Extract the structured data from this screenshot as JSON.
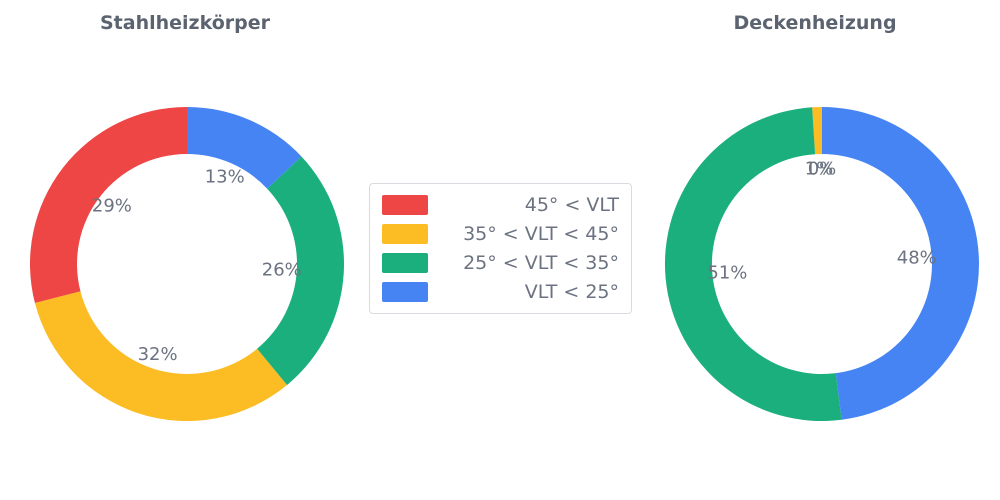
{
  "page": {
    "background": "#ffffff"
  },
  "colors": {
    "red": "#ee4545",
    "yellow": "#fbbc24",
    "green": "#1aaf7c",
    "blue": "#4584f2",
    "label_text": "#6b7280",
    "title_text": "#5c6370",
    "legend_border": "#d8dce1",
    "legend_background": "#ffffff"
  },
  "legend": {
    "position": "center",
    "items": [
      {
        "label": "45° < VLT",
        "color_key": "red"
      },
      {
        "label": "35° < VLT < 45°",
        "color_key": "yellow"
      },
      {
        "label": "25° < VLT < 35°",
        "color_key": "green"
      },
      {
        "label": "VLT < 25°",
        "color_key": "blue"
      }
    ]
  },
  "chart_data": [
    {
      "type": "pie",
      "title": "Stahlheizkörper",
      "hole": 0.7,
      "direction": "counterclockwise",
      "start_angle_deg": 90,
      "segments": [
        {
          "label": "45° < VLT",
          "color_key": "red",
          "value_pct": 29,
          "text": "29%"
        },
        {
          "label": "35° < VLT < 45°",
          "color_key": "yellow",
          "value_pct": 32,
          "text": "32%"
        },
        {
          "label": "25° < VLT < 35°",
          "color_key": "green",
          "value_pct": 26,
          "text": "26%"
        },
        {
          "label": "VLT < 25°",
          "color_key": "blue",
          "value_pct": 13,
          "text": "13%"
        }
      ]
    },
    {
      "type": "pie",
      "title": "Deckenheizung",
      "hole": 0.7,
      "direction": "counterclockwise",
      "start_angle_deg": 90,
      "segments": [
        {
          "label": "45° < VLT",
          "color_key": "red",
          "value_pct": 0,
          "text": "0%"
        },
        {
          "label": "35° < VLT < 45°",
          "color_key": "yellow",
          "value_pct": 1,
          "text": "1%"
        },
        {
          "label": "25° < VLT < 35°",
          "color_key": "green",
          "value_pct": 51,
          "text": "51%"
        },
        {
          "label": "VLT < 25°",
          "color_key": "blue",
          "value_pct": 48,
          "text": "48%"
        }
      ]
    }
  ]
}
